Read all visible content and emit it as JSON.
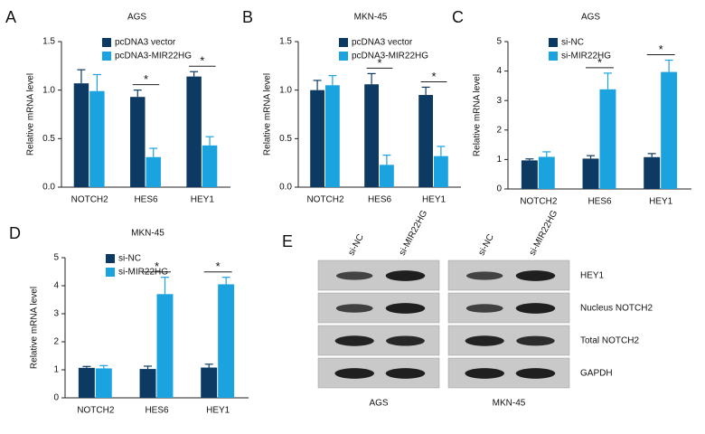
{
  "chart_data": [
    {
      "type": "bar",
      "panel": "A",
      "title": "AGS",
      "y_label": "Relative mRNA level",
      "categories": [
        "NOTCH2",
        "HES6",
        "HEY1"
      ],
      "series": [
        {
          "name": "pcDNA3 vector",
          "color": "#0d3a62",
          "values": [
            1.07,
            0.93,
            1.14
          ],
          "errors": [
            0.14,
            0.07,
            0.05
          ]
        },
        {
          "name": "pcDNA3-MIR22HG",
          "color": "#1ba3e0",
          "values": [
            0.99,
            0.31,
            0.43
          ],
          "errors": [
            0.17,
            0.09,
            0.09
          ]
        }
      ],
      "ylim": [
        0,
        1.5
      ],
      "yticks": [
        {
          "value": 0,
          "label": "0.0"
        },
        0.5,
        {
          "value": 1,
          "label": "1.0"
        },
        1.5
      ],
      "annotations": [
        {
          "category": "HES6",
          "text": "*"
        },
        {
          "category": "HEY1",
          "text": "*"
        }
      ]
    },
    {
      "type": "bar",
      "panel": "B",
      "title": "MKN-45",
      "y_label": "Relative mRNA level",
      "categories": [
        "NOTCH2",
        "HES6",
        "HEY1"
      ],
      "series": [
        {
          "name": "pcDNA3 vector",
          "color": "#0d3a62",
          "values": [
            1.0,
            1.06,
            0.95
          ],
          "errors": [
            0.1,
            0.11,
            0.08
          ]
        },
        {
          "name": "pcDNA3-MIR22HG",
          "color": "#1ba3e0",
          "values": [
            1.05,
            0.23,
            0.32
          ],
          "errors": [
            0.1,
            0.1,
            0.1
          ]
        }
      ],
      "ylim": [
        0,
        1.5
      ],
      "yticks": [
        {
          "value": 0,
          "label": "0.0"
        },
        0.5,
        {
          "value": 1,
          "label": "1.0"
        },
        1.5
      ],
      "annotations": [
        {
          "category": "HES6",
          "text": "*"
        },
        {
          "category": "HEY1",
          "text": "*"
        }
      ]
    },
    {
      "type": "bar",
      "panel": "C",
      "title": "AGS",
      "y_label": "Relative mRNA level",
      "categories": [
        "NOTCH2",
        "HES6",
        "HEY1"
      ],
      "series": [
        {
          "name": "si-NC",
          "color": "#0d3a62",
          "values": [
            0.97,
            1.03,
            1.08
          ],
          "errors": [
            0.05,
            0.1,
            0.12
          ]
        },
        {
          "name": "si-MIR22HG",
          "color": "#1ba3e0",
          "values": [
            1.09,
            3.38,
            3.97
          ],
          "errors": [
            0.17,
            0.55,
            0.4
          ]
        }
      ],
      "ylim": [
        0,
        5
      ],
      "yticks": [
        0,
        1,
        2,
        3,
        4,
        5
      ],
      "annotations": [
        {
          "category": "HES6",
          "text": "*"
        },
        {
          "category": "HEY1",
          "text": "*"
        }
      ]
    },
    {
      "type": "bar",
      "panel": "D",
      "title": "MKN-45",
      "y_label": "Relative mRNA level",
      "categories": [
        "NOTCH2",
        "HES6",
        "HEY1"
      ],
      "series": [
        {
          "name": "si-NC",
          "color": "#0d3a62",
          "values": [
            1.07,
            1.03,
            1.08
          ],
          "errors": [
            0.05,
            0.1,
            0.12
          ]
        },
        {
          "name": "si-MIR22HG",
          "color": "#1ba3e0",
          "values": [
            1.05,
            3.7,
            4.05
          ],
          "errors": [
            0.1,
            0.6,
            0.25
          ]
        }
      ],
      "ylim": [
        0,
        5
      ],
      "yticks": [
        0,
        1,
        2,
        3,
        4,
        5
      ],
      "annotations": [
        {
          "category": "HES6",
          "text": "*"
        },
        {
          "category": "HEY1",
          "text": "*"
        }
      ]
    }
  ],
  "blot": {
    "panel": "E",
    "lanes": [
      "si-NC",
      "si-MIR22HG",
      "si-NC",
      "si-MIR22HG"
    ],
    "proteins": [
      "HEY1",
      "Nucleus NOTCH2",
      "Total NOTCH2",
      "GAPDH"
    ],
    "cell_lines": [
      "AGS",
      "MKN-45"
    ]
  }
}
